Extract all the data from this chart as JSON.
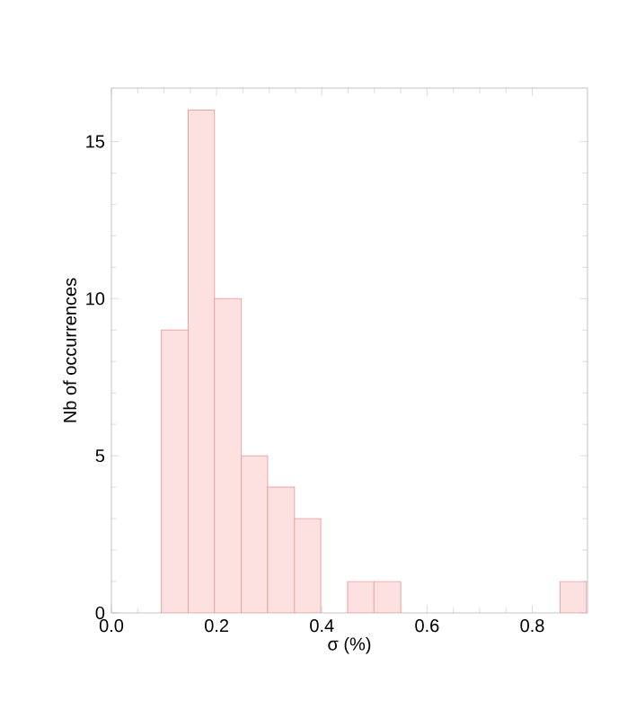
{
  "chart_data": {
    "type": "histogram",
    "xlabel": "σ (%)",
    "ylabel": "Nb of occurrences",
    "bins": [
      0.095,
      0.146,
      0.196,
      0.247,
      0.297,
      0.348,
      0.398,
      0.449,
      0.499,
      0.55,
      0.853,
      0.903
    ],
    "values": [
      9,
      16,
      10,
      5,
      4,
      3,
      0,
      1,
      1,
      0,
      1
    ],
    "color": "#fde1e1",
    "xlim": [
      0,
      0.905
    ],
    "ylim": [
      0,
      16.7
    ],
    "xticks": [
      {
        "value": 0,
        "label": "0.0"
      },
      0.2,
      0.4,
      0.6,
      0.8
    ],
    "yticks": [
      0,
      5,
      10,
      15
    ],
    "grid": false
  }
}
